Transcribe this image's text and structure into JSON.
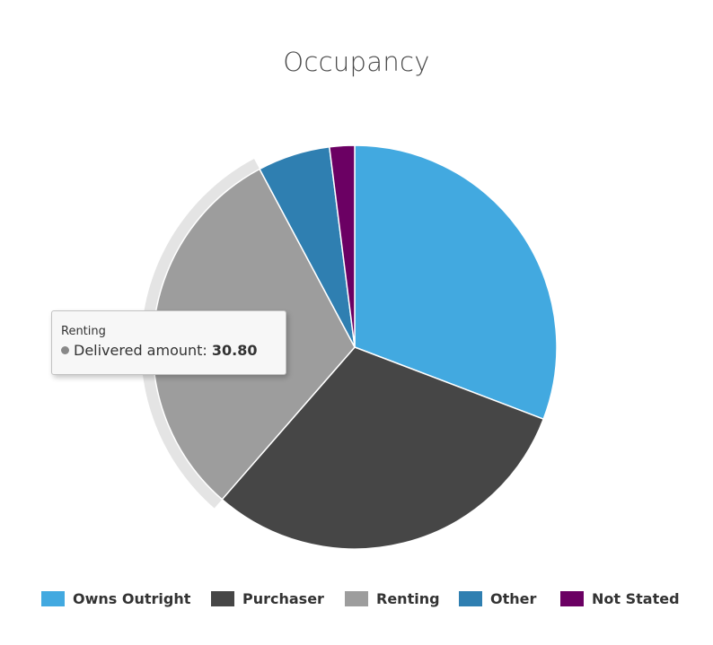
{
  "chart_data": {
    "type": "pie",
    "title": "Occupancy",
    "slices": [
      {
        "name": "Owns Outright",
        "value": 30.8,
        "color": "#42a9e0"
      },
      {
        "name": "Purchaser",
        "value": 30.6,
        "color": "#464646"
      },
      {
        "name": "Renting",
        "value": 30.8,
        "color": "#9d9d9d"
      },
      {
        "name": "Other",
        "value": 5.8,
        "color": "#2f7fb1"
      },
      {
        "name": "Not Stated",
        "value": 2.0,
        "color": "#6b0063"
      }
    ],
    "start_angle_deg": 0,
    "direction": "clockwise",
    "highlighted_slice": "Renting",
    "legend_position": "bottom"
  },
  "tooltip": {
    "series_name": "Renting",
    "label": "Delivered amount:",
    "value": "30.80"
  }
}
